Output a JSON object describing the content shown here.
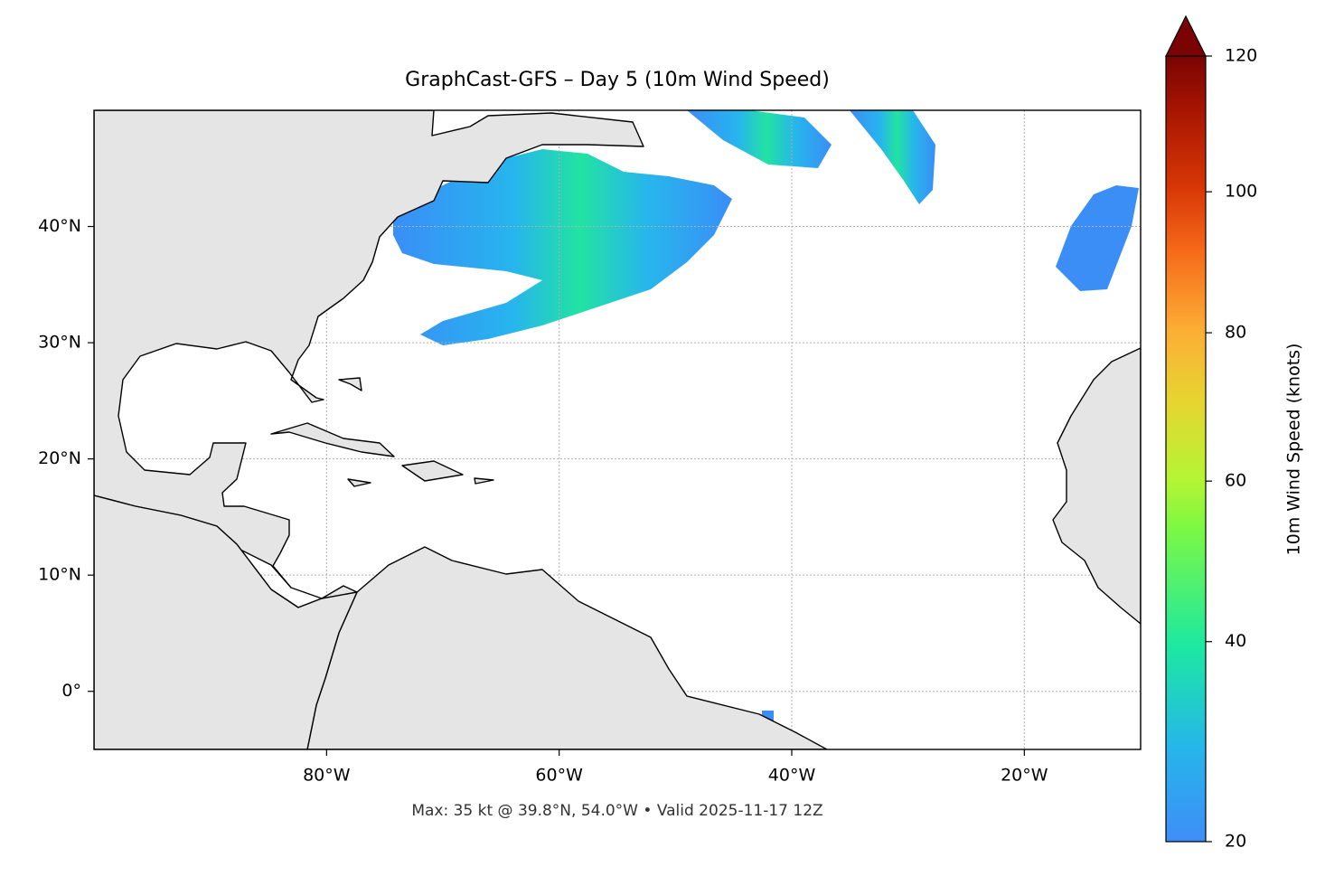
{
  "chart_data": {
    "type": "map",
    "title": "GraphCast-GFS – Day 5 (10m Wind Speed)",
    "note": "Max: 35 kt @ 39.8°N, 54.0°W • Valid 2025-11-17 12Z",
    "xlim": [
      -100,
      -10
    ],
    "ylim": [
      -5,
      50
    ],
    "xticks": [
      {
        "value": -80,
        "label": "80°W"
      },
      {
        "value": -60,
        "label": "60°W"
      },
      {
        "value": -40,
        "label": "40°W"
      },
      {
        "value": -20,
        "label": "20°W"
      }
    ],
    "yticks": [
      {
        "value": 0,
        "label": "0°"
      },
      {
        "value": 10,
        "label": "10°N"
      },
      {
        "value": 20,
        "label": "20°N"
      },
      {
        "value": 30,
        "label": "30°N"
      },
      {
        "value": 40,
        "label": "40°N"
      }
    ],
    "grid": true,
    "colorbar": {
      "label": "10m Wind Speed (knots)",
      "lim": [
        20,
        120
      ],
      "ticks": [
        20,
        40,
        60,
        80,
        100,
        120
      ],
      "gamma": 0.85,
      "extend": "max"
    }
  }
}
